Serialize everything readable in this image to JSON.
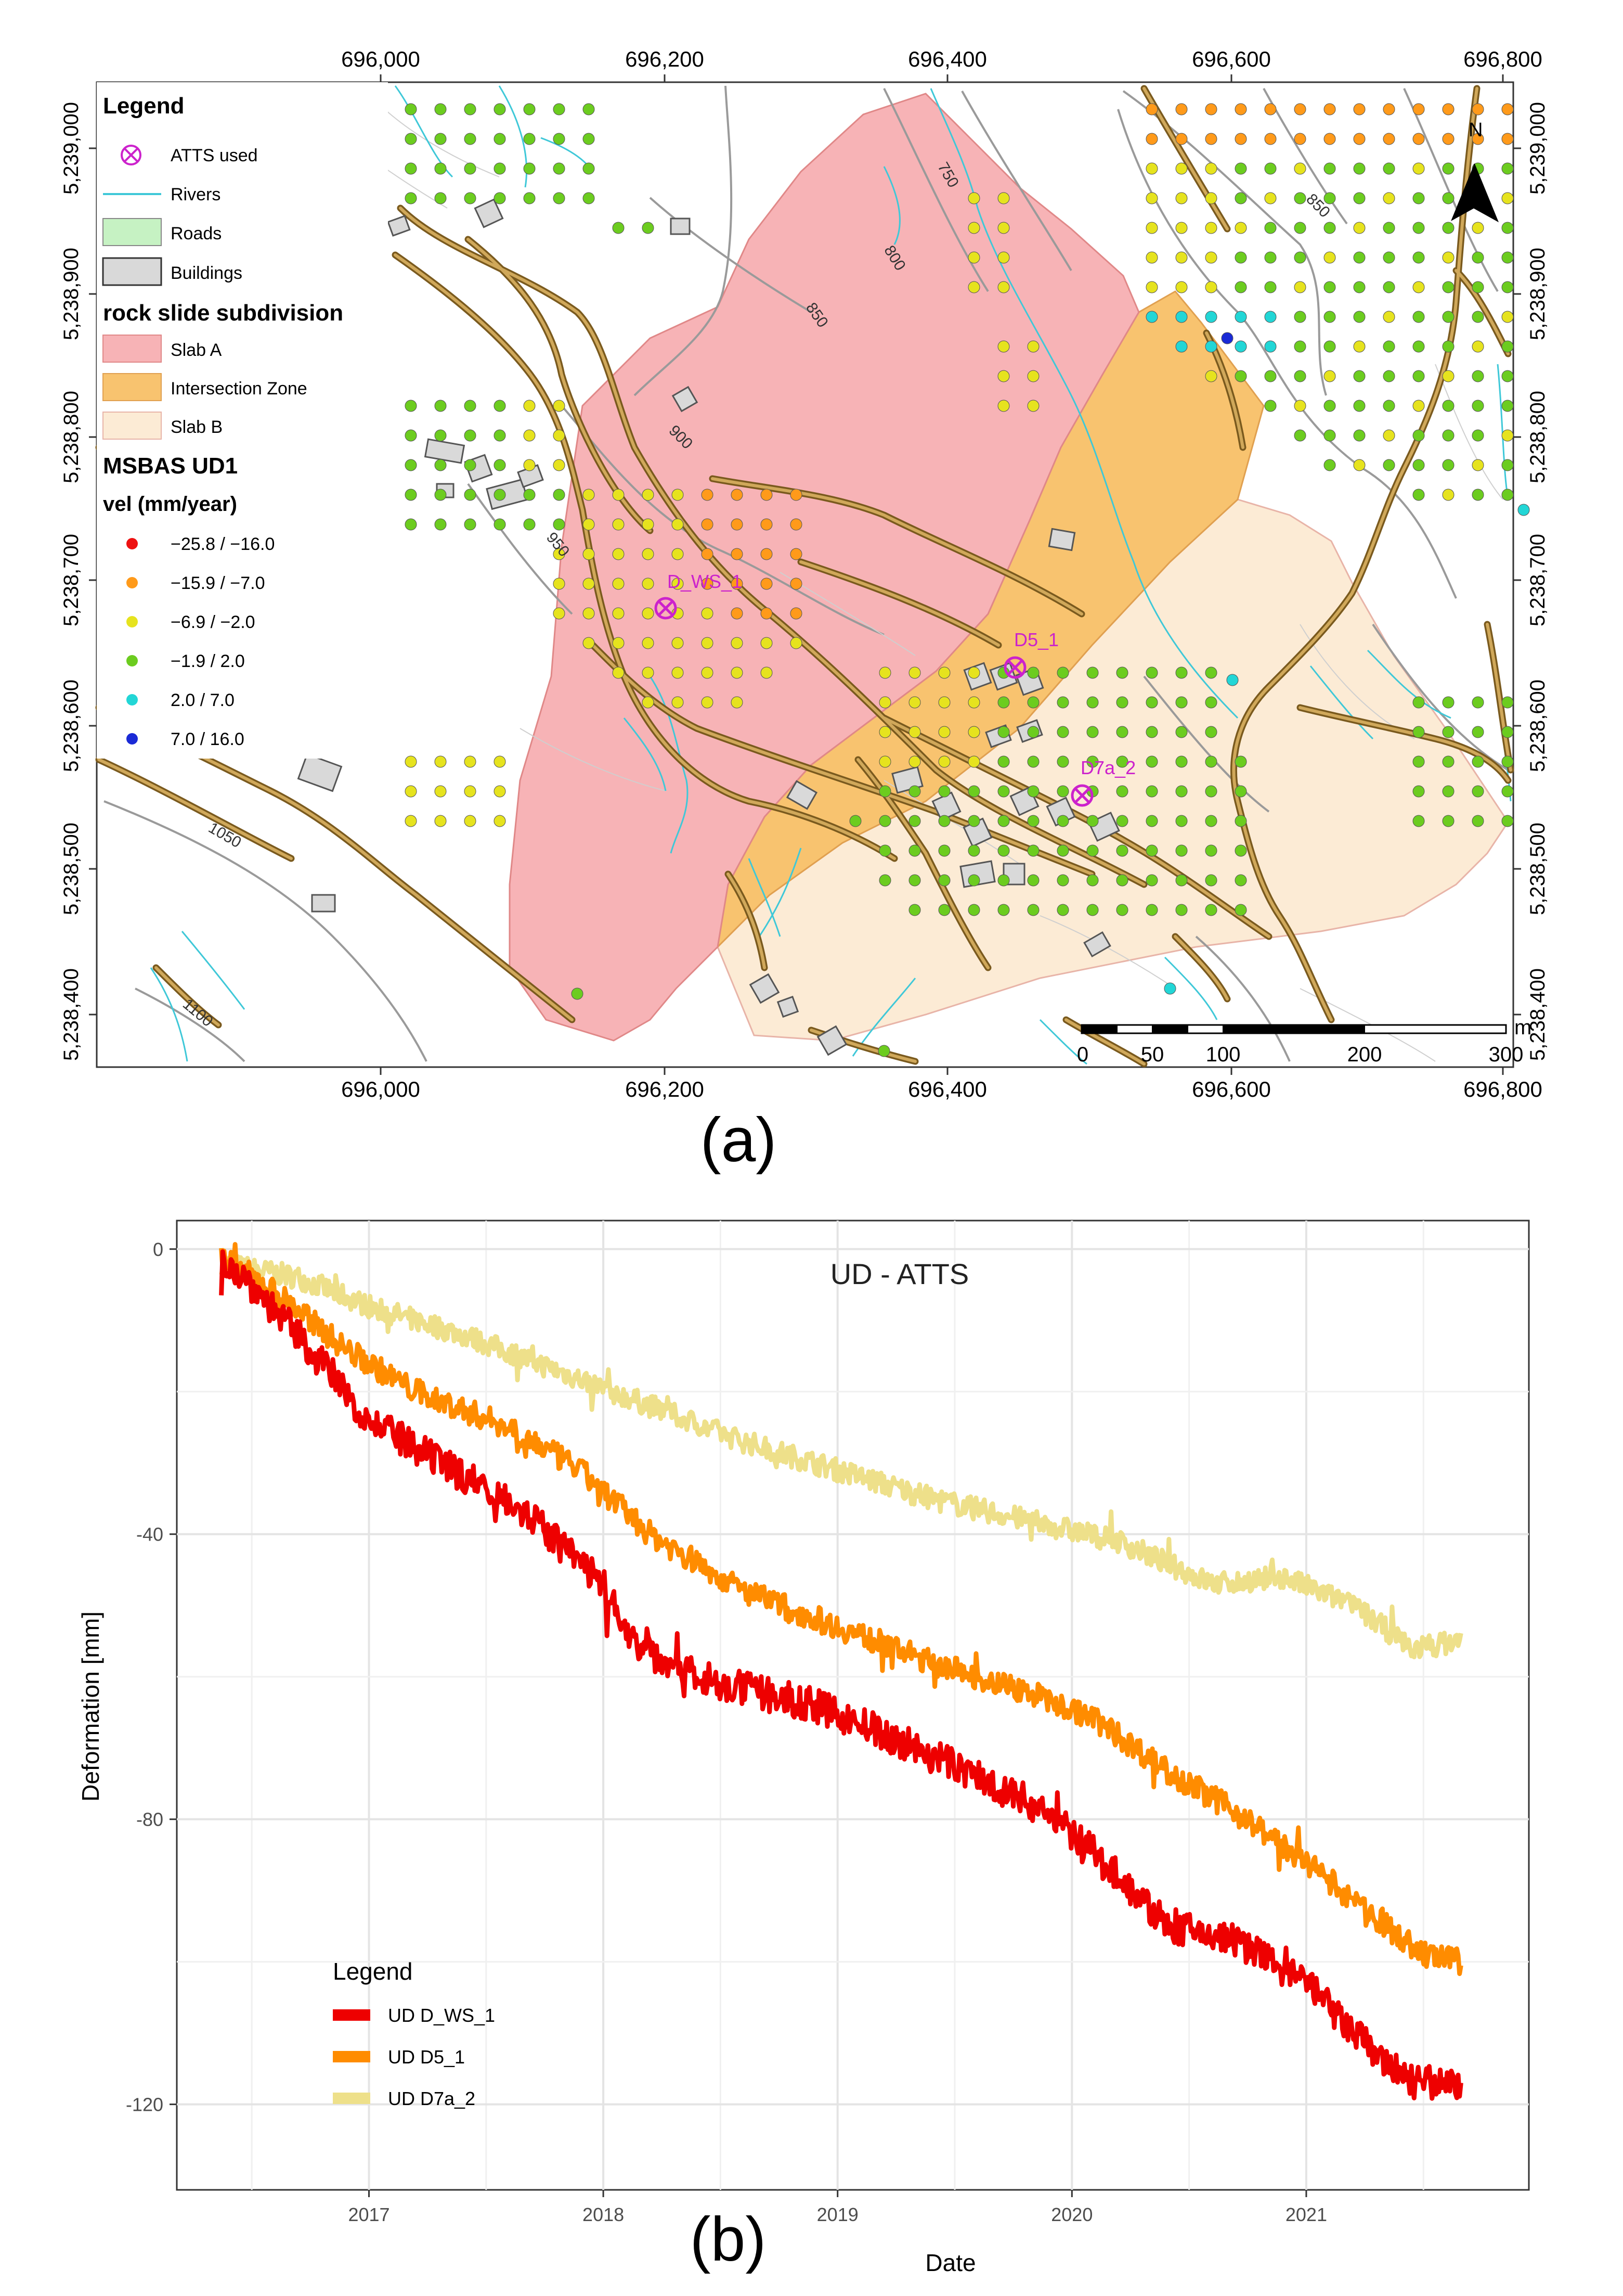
{
  "colors": {
    "slab_a": "#f7b3b6",
    "intersection": "#f8c36f",
    "slab_b": "#fcebd5",
    "river": "#3fc8d8",
    "road_outer": "#7a5a1e",
    "road_inner": "#d0a85a",
    "building": "#d9d9d9",
    "atts": "#cc22cc",
    "series1": "#ee0000",
    "series2": "#ff8c00",
    "series3": "#eee08a"
  },
  "map": {
    "panel_label": "(a)",
    "x_ticks": [
      "696,000",
      "696,200",
      "696,400",
      "696,600",
      "696,800"
    ],
    "y_ticks": [
      "5,239,000",
      "5,238,900",
      "5,238,800",
      "5,238,700",
      "5,238,600",
      "5,238,500",
      "5,238,400"
    ],
    "contour_labels": [
      "750",
      "800",
      "850",
      "850",
      "900",
      "950",
      "1050",
      "1100"
    ],
    "north": "N",
    "scale": {
      "labels": [
        "0",
        "50",
        "100",
        "200",
        "300"
      ],
      "unit": "m"
    },
    "atts_points": [
      {
        "name": "D_WS_1"
      },
      {
        "name": "D5_1"
      },
      {
        "name": "D7a_2"
      }
    ],
    "legend": {
      "title": "Legend",
      "items": [
        {
          "label": "ATTS used",
          "kind": "atts"
        },
        {
          "label": "Rivers",
          "kind": "river"
        },
        {
          "label": "Roads",
          "kind": "road"
        },
        {
          "label": "Buildings",
          "kind": "building"
        }
      ],
      "subdivision_title": "rock slide subdivision",
      "subdivision_items": [
        {
          "label": "Slab A",
          "kind": "slab_a"
        },
        {
          "label": "Intersection Zone",
          "kind": "intersection"
        },
        {
          "label": "Slab B",
          "kind": "slab_b"
        }
      ],
      "vel_title": "MSBAS UD1",
      "vel_subtitle": "vel (mm/year)",
      "vel_classes": [
        {
          "label": "−25.8 / −16.0",
          "color": "#ee1111"
        },
        {
          "label": "−15.9 / −7.0",
          "color": "#ff9a1a"
        },
        {
          "label": "−6.9 / −2.0",
          "color": "#e6e31e"
        },
        {
          "label": "−1.9 / 2.0",
          "color": "#6ccc1f"
        },
        {
          "label": "2.0 / 7.0",
          "color": "#22d6d6"
        },
        {
          "label": "7.0 / 16.0",
          "color": "#1a2ad6"
        }
      ]
    }
  },
  "chart_panel_label": "(b)",
  "chart_data": {
    "type": "line",
    "title": "UD - ATTS",
    "xlabel": "Date",
    "ylabel": "Deformation [mm]",
    "x_ticks": [
      2017,
      2018,
      2019,
      2020,
      2021
    ],
    "xlim": [
      2016.18,
      2021.95
    ],
    "y_ticks": [
      0,
      -40,
      -80,
      -120
    ],
    "ylim": [
      -132,
      4
    ],
    "legend_title": "Legend",
    "series": [
      {
        "name": "UD D_WS_1",
        "color": "#ee0000",
        "noise": 2.4,
        "x": [
          2016.37,
          2016.5,
          2016.8,
          2017.0,
          2017.3,
          2017.6,
          2017.8,
          2018.0,
          2018.15,
          2018.5,
          2018.9,
          2019.2,
          2019.6,
          2019.9,
          2020.2,
          2020.4,
          2020.7,
          2021.0,
          2021.2,
          2021.45,
          2021.66
        ],
        "y": [
          -1,
          -5,
          -16,
          -24,
          -30,
          -35,
          -41,
          -47,
          -56,
          -61,
          -64,
          -68,
          -74,
          -79,
          -88,
          -95,
          -97,
          -103,
          -110,
          -117,
          -117
        ]
      },
      {
        "name": "UD D5_1",
        "color": "#ff8c00",
        "noise": 1.8,
        "x": [
          2016.37,
          2016.6,
          2016.9,
          2017.2,
          2017.6,
          2017.9,
          2018.2,
          2018.6,
          2019.0,
          2019.4,
          2019.8,
          2020.1,
          2020.4,
          2020.7,
          2021.0,
          2021.3,
          2021.5,
          2021.66
        ],
        "y": [
          -1,
          -6,
          -14,
          -20,
          -25,
          -31,
          -40,
          -48,
          -53,
          -58,
          -62,
          -66,
          -73,
          -79,
          -86,
          -94,
          -99,
          -100
        ]
      },
      {
        "name": "UD D7a_2",
        "color": "#eee08a",
        "noise": 1.6,
        "x": [
          2016.37,
          2016.7,
          2017.0,
          2017.4,
          2017.8,
          2018.2,
          2018.6,
          2019.0,
          2019.4,
          2019.8,
          2020.2,
          2020.6,
          2020.9,
          2021.2,
          2021.45,
          2021.66
        ],
        "y": [
          -2,
          -4,
          -8,
          -12,
          -17,
          -22,
          -27,
          -31,
          -35,
          -38,
          -41,
          -47,
          -46,
          -50,
          -56,
          -55
        ]
      }
    ]
  }
}
